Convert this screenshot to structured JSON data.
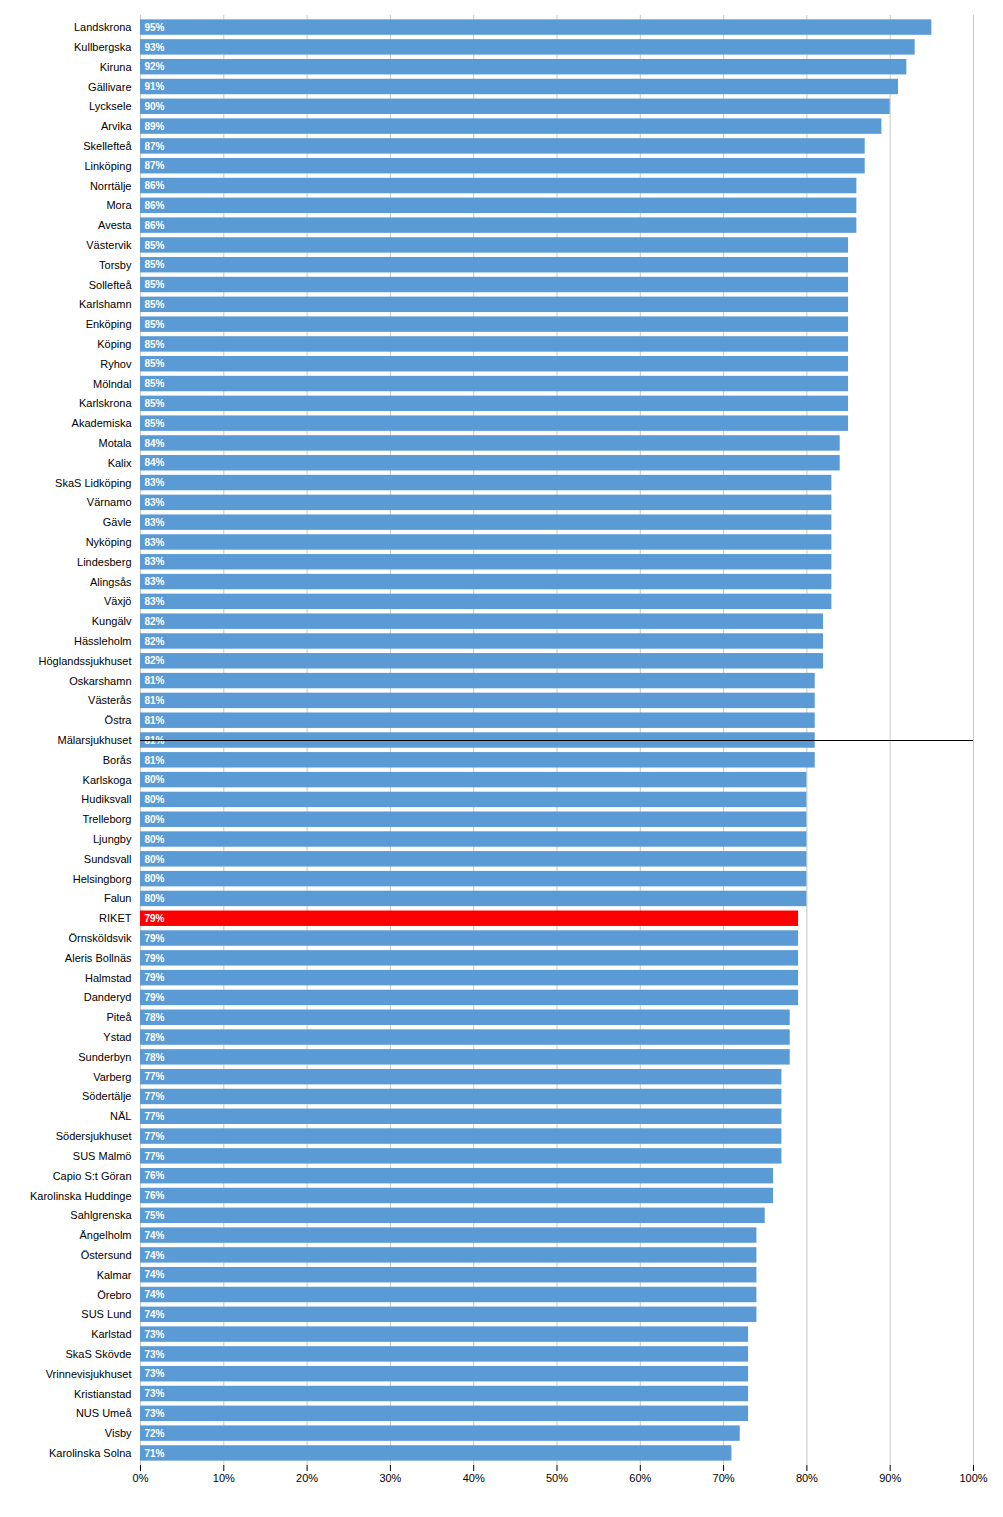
{
  "chart_data": {
    "type": "bar",
    "orientation": "horizontal",
    "categories": [
      "Landskrona",
      "Kullbergska",
      "Kiruna",
      "Gällivare",
      "Lycksele",
      "Arvika",
      "Skellefteå",
      "Linköping",
      "Norrtälje",
      "Mora",
      "Avesta",
      "Västervik",
      "Torsby",
      "Sollefteå",
      "Karlshamn",
      "Enköping",
      "Köping",
      "Ryhov",
      "Mölndal",
      "Karlskrona",
      "Akademiska",
      "Motala",
      "Kalix",
      "SkaS Lidköping",
      "Värnamo",
      "Gävle",
      "Nyköping",
      "Lindesberg",
      "Alingsås",
      "Växjö",
      "Kungälv",
      "Hässleholm",
      "Höglandssjukhuset",
      "Oskarshamn",
      "Västerås",
      "Östra",
      "Mälarsjukhuset",
      "Borås",
      "Karlskoga",
      "Hudiksvall",
      "Trelleborg",
      "Ljungby",
      "Sundsvall",
      "Helsingborg",
      "Falun",
      "RIKET",
      "Örnsköldsvik",
      "Aleris Bollnäs",
      "Halmstad",
      "Danderyd",
      "Piteå",
      "Ystad",
      "Sunderbyn",
      "Varberg",
      "Södertälje",
      "NÄL",
      "Södersjukhuset",
      "SUS Malmö",
      "Capio S:t Göran",
      "Karolinska Huddinge",
      "Sahlgrenska",
      "Ängelholm",
      "Östersund",
      "Kalmar",
      "Örebro",
      "SUS Lund",
      "Karlstad",
      "SkaS Skövde",
      "Vrinnevisjukhuset",
      "Kristianstad",
      "NUS Umeå",
      "Visby",
      "Karolinska Solna"
    ],
    "values": [
      0.95,
      0.93,
      0.92,
      0.91,
      0.9,
      0.89,
      0.87,
      0.87,
      0.86,
      0.86,
      0.86,
      0.85,
      0.85,
      0.85,
      0.85,
      0.85,
      0.85,
      0.85,
      0.85,
      0.85,
      0.85,
      0.84,
      0.84,
      0.83,
      0.83,
      0.83,
      0.83,
      0.83,
      0.83,
      0.83,
      0.82,
      0.82,
      0.82,
      0.81,
      0.81,
      0.81,
      0.81,
      0.81,
      0.8,
      0.8,
      0.8,
      0.8,
      0.8,
      0.8,
      0.8,
      0.79,
      0.79,
      0.79,
      0.79,
      0.79,
      0.78,
      0.78,
      0.78,
      0.77,
      0.77,
      0.77,
      0.77,
      0.77,
      0.76,
      0.76,
      0.75,
      0.74,
      0.74,
      0.74,
      0.74,
      0.74,
      0.73,
      0.73,
      0.73,
      0.73,
      0.73,
      0.72,
      0.71
    ],
    "value_labels": [
      "95%",
      "93%",
      "92%",
      "91%",
      "90%",
      "89%",
      "87%",
      "87%",
      "86%",
      "86%",
      "86%",
      "85%",
      "85%",
      "85%",
      "85%",
      "85%",
      "85%",
      "85%",
      "85%",
      "85%",
      "85%",
      "84%",
      "84%",
      "83%",
      "83%",
      "83%",
      "83%",
      "83%",
      "83%",
      "83%",
      "82%",
      "82%",
      "82%",
      "81%",
      "81%",
      "81%",
      "81%",
      "81%",
      "80%",
      "80%",
      "80%",
      "80%",
      "80%",
      "80%",
      "80%",
      "79%",
      "79%",
      "79%",
      "79%",
      "79%",
      "78%",
      "78%",
      "78%",
      "77%",
      "77%",
      "77%",
      "77%",
      "77%",
      "76%",
      "76%",
      "75%",
      "74%",
      "74%",
      "74%",
      "74%",
      "74%",
      "73%",
      "73%",
      "73%",
      "73%",
      "73%",
      "72%",
      "71%"
    ],
    "data_labels": true,
    "colors": [
      "#5B9BD5",
      "#5B9BD5",
      "#5B9BD5",
      "#5B9BD5",
      "#5B9BD5",
      "#5B9BD5",
      "#5B9BD5",
      "#5B9BD5",
      "#5B9BD5",
      "#5B9BD5",
      "#5B9BD5",
      "#5B9BD5",
      "#5B9BD5",
      "#5B9BD5",
      "#5B9BD5",
      "#5B9BD5",
      "#5B9BD5",
      "#5B9BD5",
      "#5B9BD5",
      "#5B9BD5",
      "#5B9BD5",
      "#5B9BD5",
      "#5B9BD5",
      "#5B9BD5",
      "#5B9BD5",
      "#5B9BD5",
      "#5B9BD5",
      "#5B9BD5",
      "#5B9BD5",
      "#5B9BD5",
      "#5B9BD5",
      "#5B9BD5",
      "#5B9BD5",
      "#5B9BD5",
      "#5B9BD5",
      "#5B9BD5",
      "#5B9BD5",
      "#5B9BD5",
      "#5B9BD5",
      "#5B9BD5",
      "#5B9BD5",
      "#5B9BD5",
      "#5B9BD5",
      "#5B9BD5",
      "#5B9BD5",
      "#FF0000",
      "#5B9BD5",
      "#5B9BD5",
      "#5B9BD5",
      "#5B9BD5",
      "#5B9BD5",
      "#5B9BD5",
      "#5B9BD5",
      "#5B9BD5",
      "#5B9BD5",
      "#5B9BD5",
      "#5B9BD5",
      "#5B9BD5",
      "#5B9BD5",
      "#5B9BD5",
      "#5B9BD5",
      "#5B9BD5",
      "#5B9BD5",
      "#5B9BD5",
      "#5B9BD5",
      "#5B9BD5",
      "#5B9BD5",
      "#5B9BD5",
      "#5B9BD5",
      "#5B9BD5",
      "#5B9BD5",
      "#5B9BD5",
      "#5B9BD5"
    ],
    "xlim": [
      0,
      1.0
    ],
    "xticks": [
      {
        "value": 0,
        "label": "0%"
      },
      {
        "value": 0.1,
        "label": "10%"
      },
      {
        "value": 0.2,
        "label": "20%"
      },
      {
        "value": 0.3,
        "label": "30%"
      },
      {
        "value": 0.4,
        "label": "40%"
      },
      {
        "value": 0.5,
        "label": "50%"
      },
      {
        "value": 0.6,
        "label": "60%"
      },
      {
        "value": 0.7,
        "label": "70%"
      },
      {
        "value": 0.8,
        "label": "80%"
      },
      {
        "value": 0.9,
        "label": "90%"
      },
      {
        "value": 1.0,
        "label": "100%"
      }
    ],
    "grid": true
  }
}
